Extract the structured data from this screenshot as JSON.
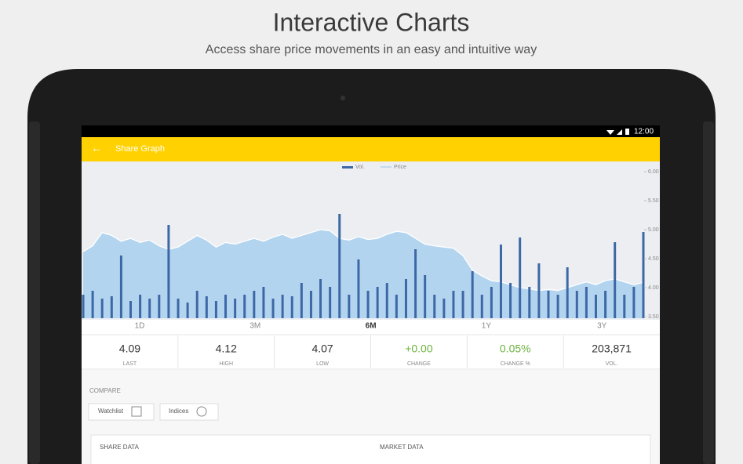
{
  "header": {
    "title": "Interactive Charts",
    "subtitle": "Access share price movements in an easy and intuitive way"
  },
  "status_bar": {
    "time": "12:00"
  },
  "toolbar": {
    "back_icon": "←",
    "title": "Share Graph"
  },
  "chart_data": {
    "type": "bar_line",
    "series": [
      {
        "name": "Vol.",
        "color": "#3d68a6",
        "axis": "y2",
        "values": [
          30,
          35,
          25,
          28,
          80,
          22,
          30,
          25,
          30,
          119,
          25,
          20,
          35,
          28,
          22,
          30,
          25,
          30,
          35,
          40,
          25,
          30,
          28,
          45,
          35,
          50,
          40,
          133,
          30,
          75,
          35,
          40,
          45,
          30,
          50,
          88,
          55,
          30,
          25,
          35,
          35,
          60,
          30,
          40,
          94,
          45,
          103,
          40,
          70,
          35,
          30,
          65,
          35,
          40,
          30,
          35,
          97,
          30,
          40,
          110
        ]
      },
      {
        "name": "Price",
        "color": "#b3d4ef",
        "values": [
          4.62,
          4.72,
          4.95,
          4.9,
          4.8,
          4.85,
          4.78,
          4.82,
          4.72,
          4.66,
          4.7,
          4.8,
          4.9,
          4.82,
          4.7,
          4.78,
          4.75,
          4.8,
          4.85,
          4.8,
          4.87,
          4.92,
          4.85,
          4.9,
          4.95,
          5.0,
          4.98,
          4.85,
          4.82,
          4.88,
          4.83,
          4.85,
          4.92,
          4.97,
          4.95,
          4.85,
          4.75,
          4.72,
          4.7,
          4.68,
          4.55,
          4.3,
          4.2,
          4.12,
          4.1,
          4.05,
          4.0,
          3.98,
          3.95,
          3.97,
          3.95,
          4.0,
          4.05,
          4.1,
          4.05,
          4.12,
          4.15,
          4.1,
          4.05,
          4.09
        ]
      }
    ],
    "ylim": [
      3.5,
      6.0
    ],
    "yticks": [
      {
        "value": 3.5,
        "label": "3.50"
      },
      {
        "value": 4.0,
        "label": "4.00"
      },
      {
        "value": 4.5,
        "label": "4.50"
      },
      {
        "value": 5.0,
        "label": "5.00"
      },
      {
        "value": 5.5,
        "label": "5.50"
      },
      {
        "value": 6.0,
        "label": "6.00"
      }
    ],
    "y2lim": [
      0,
      190
    ],
    "grid": false,
    "legend": "top"
  },
  "range_buttons": {
    "options": [
      "1D",
      "3M",
      "6M",
      "1Y",
      "3Y"
    ],
    "selected_index": 2
  },
  "stats": [
    {
      "value": "4.09",
      "label": "LAST"
    },
    {
      "value": "4.12",
      "label": "HIGH"
    },
    {
      "value": "4.07",
      "label": "LOW"
    },
    {
      "value": "+0.00",
      "label": "CHANGE",
      "color": "#6cb33f"
    },
    {
      "value": "0.05%",
      "label": "CHANGE %",
      "color": "#6cb33f"
    },
    {
      "value": "203,871",
      "label": "VOL."
    }
  ],
  "compare": {
    "title": "COMPARE",
    "buttons": [
      "Watchlist",
      "Indices"
    ]
  },
  "card": {
    "columns": [
      "SHARE DATA",
      "MARKET DATA"
    ]
  }
}
